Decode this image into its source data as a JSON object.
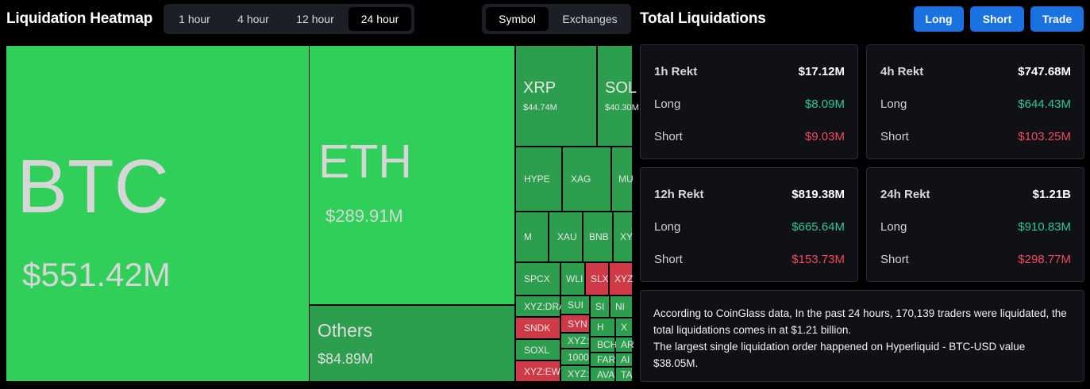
{
  "header": {
    "title": "Liquidation Heatmap",
    "time_tabs": [
      "1 hour",
      "4 hour",
      "12 hour",
      "24 hour"
    ],
    "active_time_tab": "24 hour",
    "view_tabs": [
      "Symbol",
      "Exchanges"
    ],
    "active_view_tab": "Symbol"
  },
  "panel": {
    "title": "Total Liquidations",
    "buttons": {
      "long": "Long",
      "short": "Short",
      "trade": "Trade"
    },
    "cards": [
      {
        "label": "1h Rekt",
        "total": "$17.12M",
        "long_label": "Long",
        "long": "$8.09M",
        "short_label": "Short",
        "short": "$9.03M"
      },
      {
        "label": "4h Rekt",
        "total": "$747.68M",
        "long_label": "Long",
        "long": "$644.43M",
        "short_label": "Short",
        "short": "$103.25M"
      },
      {
        "label": "12h Rekt",
        "total": "$819.38M",
        "long_label": "Long",
        "long": "$665.64M",
        "short_label": "Short",
        "short": "$153.73M"
      },
      {
        "label": "24h Rekt",
        "total": "$1.21B",
        "long_label": "Long",
        "long": "$910.83M",
        "short_label": "Short",
        "short": "$298.77M"
      }
    ],
    "info_line1": "According to CoinGlass data, In the past 24 hours, 170,139 traders were liquidated, the total liquidations comes in at $1.21 billion.",
    "info_line2": "The largest single liquidation order happened on Hyperliquid - BTC-USD value $38.05M."
  },
  "heatmap": {
    "big": [
      {
        "symbol": "BTC",
        "value": "$551.42M"
      },
      {
        "symbol": "ETH",
        "value": "$289.91M"
      },
      {
        "symbol": "Others",
        "value": "$84.89M"
      },
      {
        "symbol": "XRP",
        "value": "$44.74M"
      },
      {
        "symbol": "SOL",
        "value": "$40.30M"
      }
    ],
    "small": [
      "HYPE",
      "XAG",
      "MU",
      "M",
      "XAU",
      "BNB",
      "XY",
      "SPCX",
      "WLI",
      "SLX",
      "XYZ",
      "XYZ:DRA",
      "SUI",
      "SI",
      "NI",
      "SNDK",
      "SYN",
      "H",
      "X",
      "SOXL",
      "XYZ:",
      "BCH",
      "AR",
      "1000",
      "FAR",
      "AI",
      "XYZ:EW",
      "XYZ:",
      "AVA",
      "TA"
    ],
    "colors": {
      "bright_green": "#2fcf5a",
      "mid_green": "#2c9e4d",
      "red": "#cf3a47"
    }
  }
}
